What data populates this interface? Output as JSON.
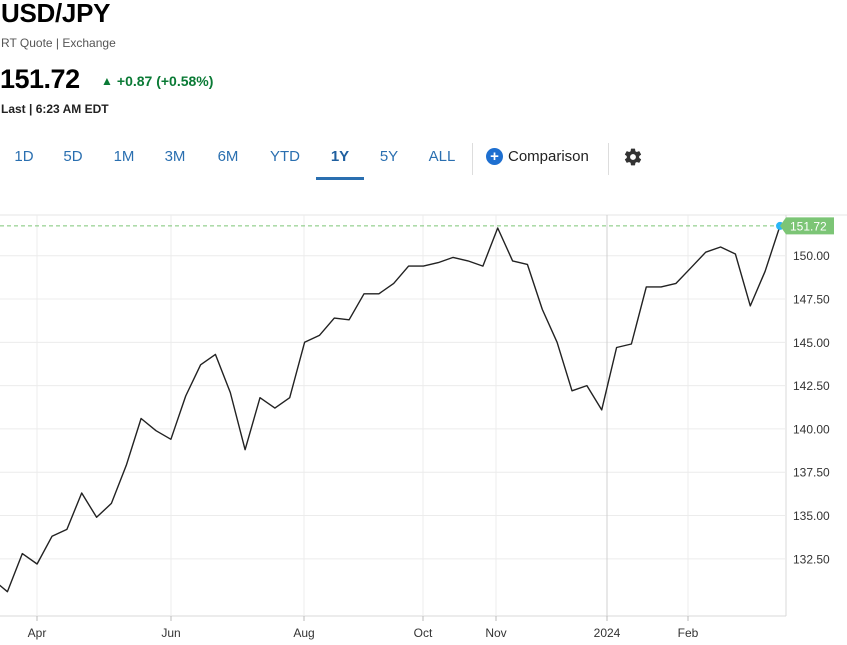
{
  "header": {
    "symbol": "USD/JPY",
    "quote_type": "RT Quote | Exchange",
    "price": "151.72",
    "change_arrow": "▲",
    "change": "+0.87 (+0.58%)",
    "last_time": "Last | 6:23 AM EDT",
    "change_color": "#0a7a35"
  },
  "toolbar": {
    "ranges": [
      "1D",
      "5D",
      "1M",
      "3M",
      "6M",
      "YTD",
      "1Y",
      "5Y",
      "ALL"
    ],
    "active_range": "1Y",
    "comparison_label": "Comparison",
    "plus_icon": "plus-circle-icon",
    "settings_icon": "gear-icon"
  },
  "chart_data": {
    "type": "line",
    "x_tick_labels": [
      "Apr",
      "Jun",
      "Aug",
      "Oct",
      "Nov",
      "2024",
      "Feb"
    ],
    "y_ticks": [
      132.5,
      135.0,
      137.5,
      140.0,
      142.5,
      145.0,
      147.5,
      150.0
    ],
    "y_tick_labels": [
      "132.50",
      "135.00",
      "137.50",
      "140.00",
      "142.50",
      "145.00",
      "147.50",
      "150.00"
    ],
    "ylim": [
      129.2,
      152.35
    ],
    "last_value": 151.72,
    "last_label": "151.72",
    "grid": true,
    "line_color": "#222222",
    "last_marker_color": "#29b6f6",
    "last_label_bg": "#7cc576",
    "reference_line_color": "#7cc576",
    "series": [
      {
        "values": [
          [
            -0.3,
            131.5
          ],
          [
            0.2,
            130.6
          ],
          [
            0.6,
            132.8
          ],
          [
            1.0,
            132.2
          ],
          [
            1.4,
            133.8
          ],
          [
            1.8,
            134.2
          ],
          [
            2.2,
            136.3
          ],
          [
            2.6,
            134.9
          ],
          [
            3.0,
            135.7
          ],
          [
            3.4,
            137.9
          ],
          [
            3.8,
            140.6
          ],
          [
            4.2,
            139.9
          ],
          [
            4.6,
            139.4
          ],
          [
            5.0,
            141.9
          ],
          [
            5.4,
            143.7
          ],
          [
            5.8,
            144.3
          ],
          [
            6.2,
            142.1
          ],
          [
            6.6,
            138.8
          ],
          [
            7.0,
            141.8
          ],
          [
            7.4,
            141.2
          ],
          [
            7.8,
            141.8
          ],
          [
            8.2,
            145.0
          ],
          [
            8.6,
            145.4
          ],
          [
            9.0,
            146.4
          ],
          [
            9.4,
            146.3
          ],
          [
            9.8,
            147.8
          ],
          [
            10.2,
            147.8
          ],
          [
            10.6,
            148.4
          ],
          [
            11.0,
            149.4
          ],
          [
            11.4,
            149.4
          ],
          [
            11.8,
            149.6
          ],
          [
            12.2,
            149.9
          ],
          [
            12.6,
            149.7
          ],
          [
            13.0,
            149.4
          ],
          [
            13.4,
            151.6
          ],
          [
            13.8,
            149.7
          ],
          [
            14.2,
            149.5
          ],
          [
            14.6,
            146.9
          ],
          [
            15.0,
            145.0
          ],
          [
            15.4,
            142.2
          ],
          [
            15.8,
            142.5
          ],
          [
            16.2,
            141.1
          ],
          [
            16.6,
            144.7
          ],
          [
            17.0,
            144.9
          ],
          [
            17.4,
            148.2
          ],
          [
            17.8,
            148.2
          ],
          [
            18.2,
            148.4
          ],
          [
            18.6,
            149.3
          ],
          [
            19.0,
            150.2
          ],
          [
            19.4,
            150.5
          ],
          [
            19.8,
            150.1
          ],
          [
            20.2,
            147.1
          ],
          [
            20.6,
            149.1
          ],
          [
            21.0,
            151.72
          ]
        ]
      }
    ]
  }
}
